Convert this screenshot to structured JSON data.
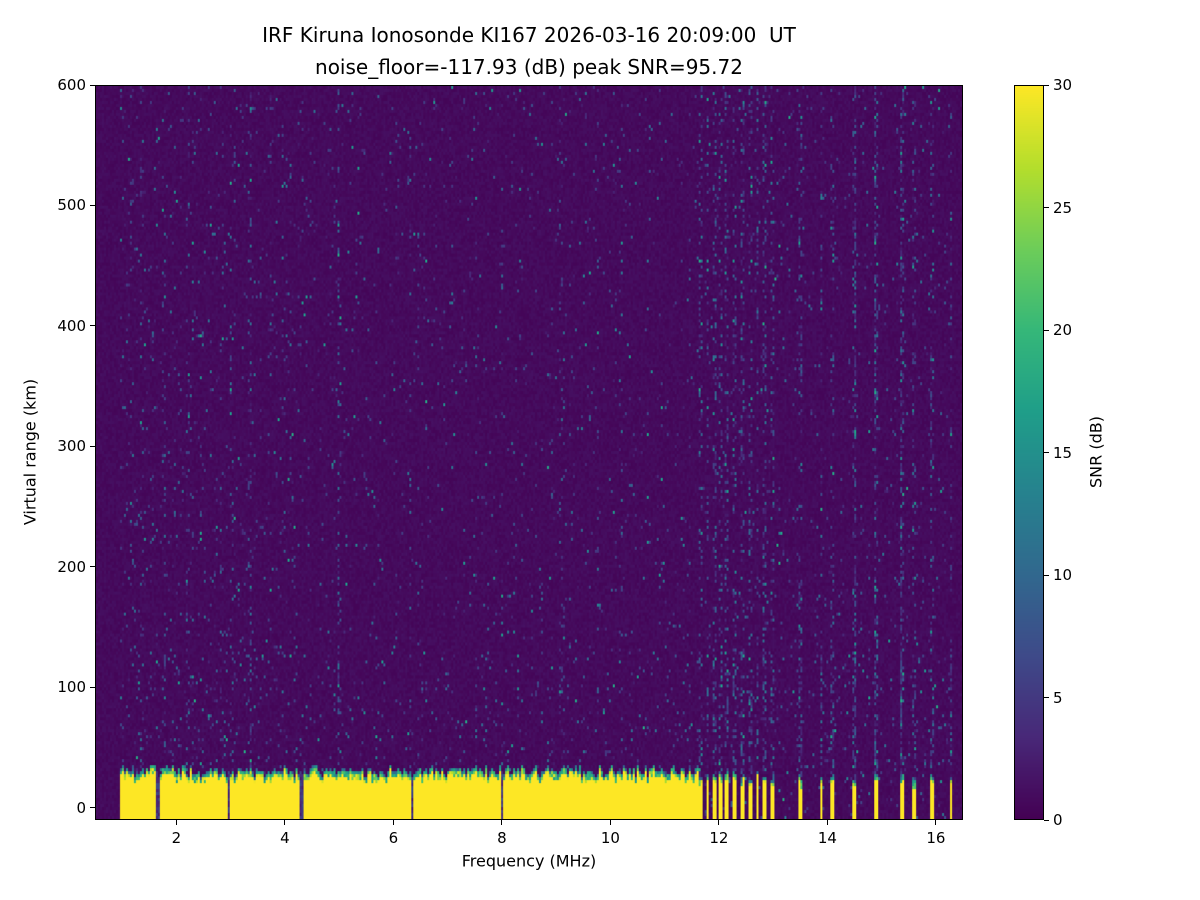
{
  "chart_data": {
    "type": "heatmap",
    "title_line1": "IRF Kiruna Ionosonde KI167 2026-03-16 20:09:00  UT",
    "title_line2": "noise_floor=-117.93 (dB) peak SNR=95.72",
    "station": "IRF Kiruna Ionosonde KI167",
    "timestamp_ut": "2026-03-16 20:09:00",
    "noise_floor_db": -117.93,
    "peak_snr_db": 95.72,
    "xlabel": "Frequency (MHz)",
    "ylabel": "Virtual range (km)",
    "colorbar_label": "SNR (dB)",
    "colormap": "viridis",
    "xlim": [
      0.5,
      16.5
    ],
    "ylim": [
      -10,
      600
    ],
    "clim": [
      0,
      30
    ],
    "x_ticks": [
      2,
      4,
      6,
      8,
      10,
      12,
      14,
      16
    ],
    "y_ticks": [
      0,
      100,
      200,
      300,
      400,
      500,
      600
    ],
    "colorbar_ticks": [
      0,
      5,
      10,
      15,
      20,
      25,
      30
    ],
    "features": {
      "data_freq_range_mhz": [
        0.95,
        16.33
      ],
      "ground_echo_band": {
        "freq_start_mhz": 0.95,
        "freq_continuous_end_mhz": 11.62,
        "top_mean_km": 30,
        "top_jitter_km": 9,
        "snr_db": 30,
        "notch_freqs_mhz": [
          1.65,
          2.95,
          4.3,
          6.35,
          8.0
        ]
      },
      "discrete_echo_columns_mhz": [
        11.68,
        11.8,
        11.92,
        12.04,
        12.16,
        12.3,
        12.44,
        12.58,
        12.72,
        12.86,
        13.0,
        13.5,
        13.9,
        14.12,
        14.5,
        14.92,
        15.4,
        15.62,
        15.95,
        16.3
      ],
      "faint_noise_streaks_mhz": [
        1.35,
        1.75,
        2.2,
        3.0,
        3.35,
        5.0,
        6.3,
        8.0,
        9.1,
        10.2
      ],
      "background_snr_db": 1,
      "speckle_noise": {
        "density": 0.025,
        "snr_range_db": [
          2,
          16
        ]
      }
    }
  }
}
